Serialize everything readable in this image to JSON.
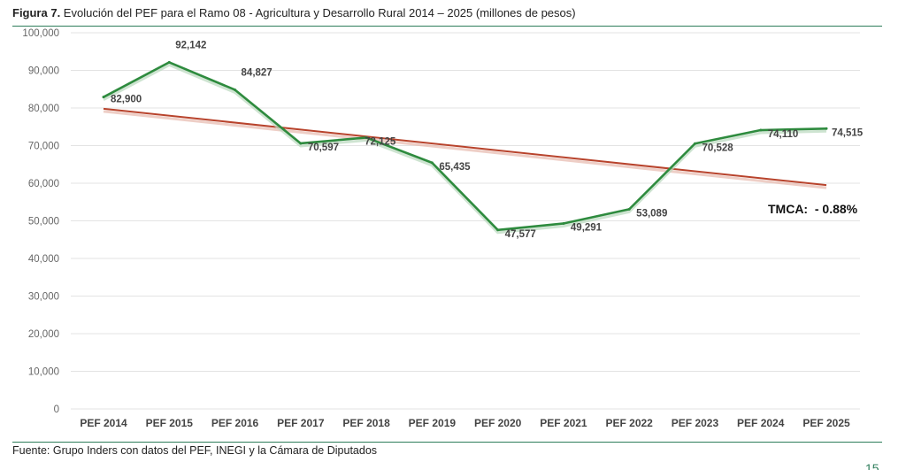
{
  "figure": {
    "label": "Figura 7.",
    "title": " Evolución del PEF para el Ramo 08 - Agricultura y Desarrollo Rural 2014 – 2025 (millones de pesos)"
  },
  "source": "Fuente: Grupo Inders con datos del PEF, INEGI y la Cámara de Diputados",
  "page_number": "15",
  "colors": {
    "series_line": "#2e8b3e",
    "trend_line": "#b8432c",
    "rule": "#2e7d5b",
    "grid": "#e3e3e3"
  },
  "chart_data": {
    "type": "line",
    "title": "",
    "xlabel": "",
    "ylabel": "",
    "categories": [
      "PEF 2014",
      "PEF 2015",
      "PEF 2016",
      "PEF 2017",
      "PEF 2018",
      "PEF 2019",
      "PEF 2020",
      "PEF 2021",
      "PEF 2022",
      "PEF 2023",
      "PEF 2024",
      "PEF 2025"
    ],
    "series": [
      {
        "values": [
          82900,
          92142,
          84827,
          70597,
          72125,
          65435,
          47577,
          49291,
          53089,
          70528,
          74110,
          74515
        ],
        "labels": [
          "82,900",
          "92,142",
          "84,827",
          "70,597",
          "72,125",
          "65,435",
          "47,577",
          "49,291",
          "53,089",
          "70,528",
          "74,110",
          "74,515"
        ]
      }
    ],
    "trendline": {
      "type": "linear",
      "start_value": 79800,
      "end_value": 59500
    },
    "ylim": [
      0,
      100000
    ],
    "y_ticks": [
      "0",
      "10,000",
      "20,000",
      "30,000",
      "40,000",
      "50,000",
      "60,000",
      "70,000",
      "80,000",
      "90,000",
      "100,000"
    ],
    "grid": "horizontal",
    "legend": "none",
    "annotations": [
      {
        "text": "TMCA:  - 0.88%"
      }
    ]
  }
}
